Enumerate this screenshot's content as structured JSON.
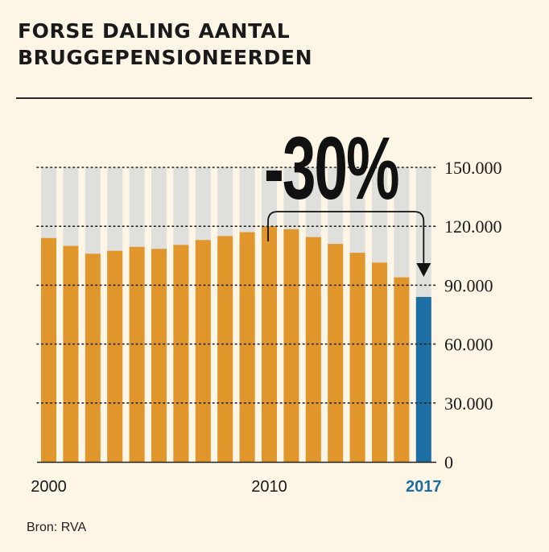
{
  "header": {
    "title_line1": "FORSE DALING AANTAL",
    "title_line2": "BRUGGEPENSIONEERDEN"
  },
  "source": "Bron: RVA",
  "colors": {
    "bar": "#e0962b",
    "highlight": "#1d6fa3",
    "background_bar": "#dfdfdc",
    "page": "#fdf5e6",
    "text": "#1a1a1a"
  },
  "chart_data": {
    "type": "bar",
    "title": "FORSE DALING AANTAL BRUGGEPENSIONEERDEN",
    "categories": [
      "2000",
      "2001",
      "2002",
      "2003",
      "2004",
      "2005",
      "2006",
      "2007",
      "2008",
      "2009",
      "2010",
      "2011",
      "2012",
      "2013",
      "2014",
      "2015",
      "2016",
      "2017"
    ],
    "series": [
      {
        "name": "Bruggepensioneerden",
        "values": [
          114000,
          110000,
          106000,
          107500,
          109500,
          108500,
          110500,
          113000,
          115000,
          117000,
          120000,
          118500,
          114500,
          111000,
          106500,
          101500,
          94000,
          84000
        ]
      }
    ],
    "highlight_category": "2017",
    "ylim": [
      0,
      150000
    ],
    "yticks": [
      0,
      30000,
      60000,
      90000,
      120000,
      150000
    ],
    "ytick_labels": [
      "0",
      "30.000",
      "60.000",
      "90.000",
      "120.000",
      "150.000"
    ],
    "xtick_labels": [
      {
        "category": "2000",
        "label": "2000"
      },
      {
        "category": "2010",
        "label": "2010"
      },
      {
        "category": "2017",
        "label": "2017"
      }
    ],
    "annotation": {
      "text": "-30%",
      "from": "2010",
      "to": "2017"
    },
    "grid": true,
    "xlabel": "",
    "ylabel": ""
  }
}
